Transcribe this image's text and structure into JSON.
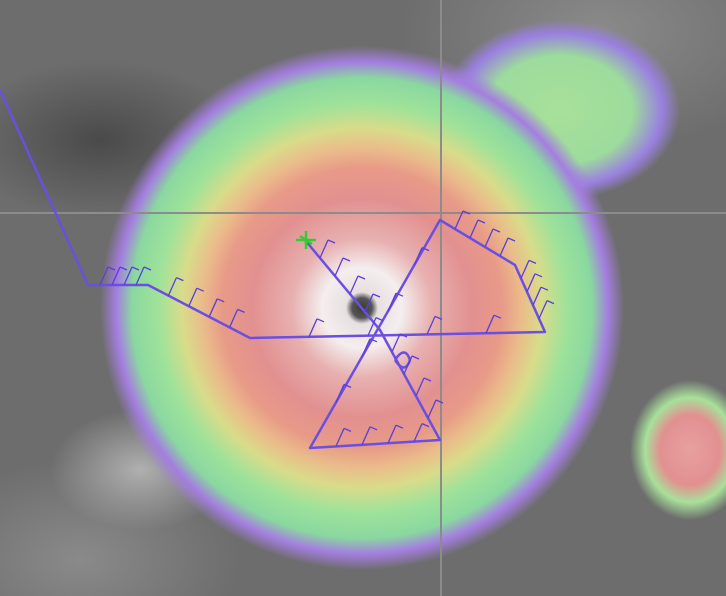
{
  "map": {
    "type": "infrared satellite imagery with reconnaissance flight track",
    "icons": [
      "aircraft-icon",
      "wind-barb-icon"
    ],
    "colors": {
      "track": "#6a4fe0",
      "aircraft": "#33cc33",
      "eye": "#444444",
      "grid": "#8c8c8c"
    }
  }
}
